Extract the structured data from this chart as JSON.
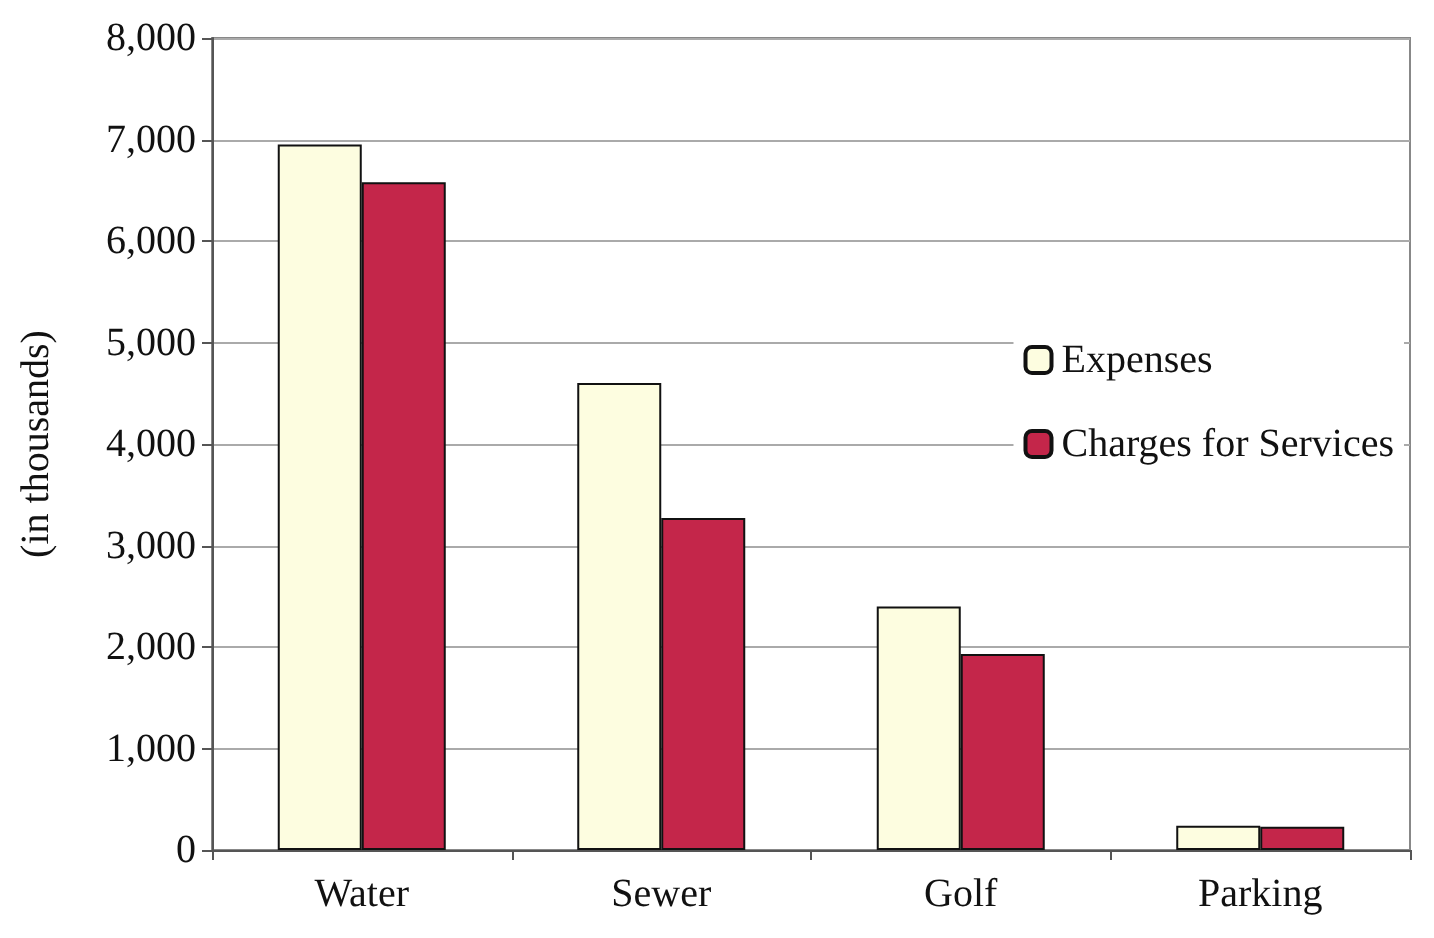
{
  "chart_data": {
    "type": "bar",
    "ylabel": "(in thousands)",
    "categories": [
      "Water",
      "Sewer",
      "Golf",
      "Parking"
    ],
    "series": [
      {
        "name": "Expenses",
        "color": "#fdfde0",
        "values": [
          6950,
          4600,
          2400,
          240
        ]
      },
      {
        "name": "Charges for Services",
        "color": "#c4264a",
        "values": [
          6580,
          3270,
          1930,
          230
        ]
      }
    ],
    "ylim": [
      0,
      8000
    ],
    "yticks": [
      {
        "value": 0,
        "label": "0"
      },
      {
        "value": 1000,
        "label": "1,000"
      },
      {
        "value": 2000,
        "label": "2,000"
      },
      {
        "value": 3000,
        "label": "3,000"
      },
      {
        "value": 4000,
        "label": "4,000"
      },
      {
        "value": 5000,
        "label": "5,000"
      },
      {
        "value": 6000,
        "label": "6,000"
      },
      {
        "value": 7000,
        "label": "7,000"
      },
      {
        "value": 8000,
        "label": "8,000"
      }
    ],
    "grid": "y",
    "legend": "right"
  }
}
